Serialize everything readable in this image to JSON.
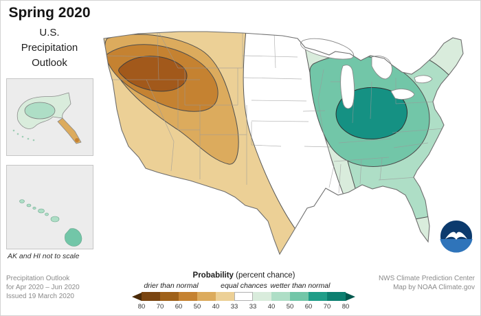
{
  "title": {
    "season": "Spring 2020",
    "line1": "U.S.",
    "line2": "Precipitation",
    "line3": "Outlook"
  },
  "insets": {
    "note": "AK and HI not to scale"
  },
  "footer_left": {
    "line1": "Precipitation Outlook",
    "line2": "for Apr 2020 – Jun 2020",
    "line3": "Issued 19 March 2020"
  },
  "footer_right": {
    "line1": "NWS Climate Prediction Center",
    "line2": "Map by NOAA Climate.gov"
  },
  "legend": {
    "title_bold": "Probability",
    "title_rest": " (percent chance)",
    "label_drier": "drier than normal",
    "label_equal": "equal chances",
    "label_wetter": "wetter than normal",
    "ticks": [
      "80",
      "70",
      "60",
      "50",
      "40",
      "33",
      "33",
      "40",
      "50",
      "60",
      "70",
      "80"
    ],
    "arrow_left_color": "#4a2a08",
    "arrow_right_color": "#04584e",
    "swatches": [
      "#7a4511",
      "#9f6119",
      "#c58231",
      "#dcab5d",
      "#ecd096",
      "#ffffff",
      "#d9ecdc",
      "#aedec6",
      "#72c6a8",
      "#1f9d88",
      "#0c7f70"
    ]
  },
  "map": {
    "colors": {
      "equal": "#ffffff",
      "drier_33_40": "#ecd096",
      "drier_40_50": "#dcab5d",
      "drier_50_60": "#c58231",
      "drier_60_70": "#a2591b",
      "wetter_33_40": "#d9ecdc",
      "wetter_40_50": "#aedec6",
      "wetter_50_60": "#72c6a8",
      "wetter_60_70": "#159183",
      "contour_line": "#4d4d4d",
      "state_line": "#9a9a9a",
      "us_outline": "#6e6e6e",
      "lake_fill": "#ffffff",
      "noaa_navy": "#0c3a6d",
      "noaa_blue": "#2f74ba"
    }
  }
}
